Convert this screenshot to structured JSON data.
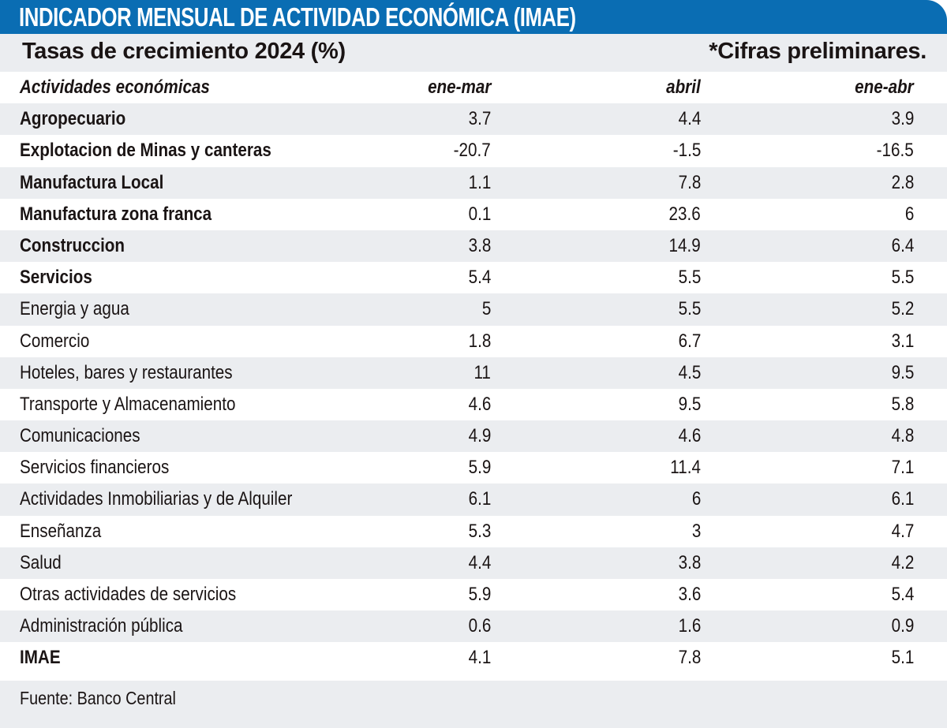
{
  "header": {
    "title": "INDICADOR MENSUAL DE ACTIVIDAD ECONÓMICA (IMAE)",
    "subtitle": "Tasas de crecimiento 2024 (%)",
    "note": "*Cifras preliminares.",
    "accent_color": "#0a6db3"
  },
  "table": {
    "columns": [
      "Actividades económicas",
      "ene-mar",
      "abril",
      "ene-abr"
    ],
    "rows": [
      {
        "label": "Agropecuario",
        "bold": true,
        "ene_mar": "3.7",
        "abril": "4.4",
        "ene_abr": "3.9"
      },
      {
        "label": "Explotacion de Minas y canteras",
        "bold": true,
        "ene_mar": "-20.7",
        "abril": "-1.5",
        "ene_abr": "-16.5"
      },
      {
        "label": "Manufactura Local",
        "bold": true,
        "ene_mar": "1.1",
        "abril": "7.8",
        "ene_abr": "2.8"
      },
      {
        "label": "Manufactura zona franca",
        "bold": true,
        "ene_mar": "0.1",
        "abril": "23.6",
        "ene_abr": "6"
      },
      {
        "label": "Construccion",
        "bold": true,
        "ene_mar": "3.8",
        "abril": "14.9",
        "ene_abr": "6.4"
      },
      {
        "label": "Servicios",
        "bold": true,
        "ene_mar": "5.4",
        "abril": "5.5",
        "ene_abr": "5.5"
      },
      {
        "label": "Energia y agua",
        "bold": false,
        "ene_mar": "5",
        "abril": "5.5",
        "ene_abr": "5.2"
      },
      {
        "label": "Comercio",
        "bold": false,
        "ene_mar": "1.8",
        "abril": "6.7",
        "ene_abr": "3.1"
      },
      {
        "label": "Hoteles, bares y restaurantes",
        "bold": false,
        "ene_mar": "11",
        "abril": "4.5",
        "ene_abr": "9.5"
      },
      {
        "label": "Transporte y Almacenamiento",
        "bold": false,
        "ene_mar": "4.6",
        "abril": "9.5",
        "ene_abr": "5.8"
      },
      {
        "label": "Comunicaciones",
        "bold": false,
        "ene_mar": "4.9",
        "abril": "4.6",
        "ene_abr": "4.8"
      },
      {
        "label": "Servicios financieros",
        "bold": false,
        "ene_mar": "5.9",
        "abril": "11.4",
        "ene_abr": "7.1"
      },
      {
        "label": "Actividades Inmobiliarias y de Alquiler",
        "bold": false,
        "ene_mar": "6.1",
        "abril": "6",
        "ene_abr": "6.1"
      },
      {
        "label": "Enseñanza",
        "bold": false,
        "ene_mar": "5.3",
        "abril": "3",
        "ene_abr": "4.7"
      },
      {
        "label": "Salud",
        "bold": false,
        "ene_mar": "4.4",
        "abril": "3.8",
        "ene_abr": "4.2"
      },
      {
        "label": "Otras actividades de servicios",
        "bold": false,
        "ene_mar": "5.9",
        "abril": "3.6",
        "ene_abr": "5.4"
      },
      {
        "label": "Administración pública",
        "bold": false,
        "ene_mar": "0.6",
        "abril": "1.6",
        "ene_abr": "0.9"
      },
      {
        "label": "IMAE",
        "bold": true,
        "ene_mar": "4.1",
        "abril": "7.8",
        "ene_abr": "5.1"
      }
    ]
  },
  "footer": {
    "source": "Fuente: Banco Central"
  }
}
